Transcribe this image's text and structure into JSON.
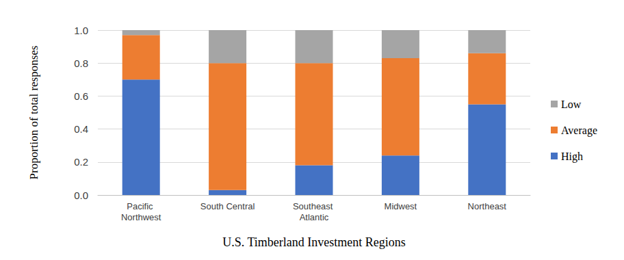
{
  "chart_data": {
    "type": "bar",
    "stacked": true,
    "orientation": "vertical",
    "x_label": "U.S. Timberland Investment Regions",
    "y_label": "Proportion of total responses",
    "categories": [
      "Pacific Northwest",
      "South Central",
      "Southeast Atlantic",
      "Midwest",
      "Northeast"
    ],
    "series": [
      {
        "name": "High",
        "color": "#4472c4",
        "values": [
          0.7,
          0.03,
          0.18,
          0.24,
          0.55
        ]
      },
      {
        "name": "Average",
        "color": "#ed7d31",
        "values": [
          0.27,
          0.77,
          0.62,
          0.59,
          0.31
        ]
      },
      {
        "name": "Low",
        "color": "#a5a5a5",
        "values": [
          0.03,
          0.2,
          0.2,
          0.17,
          0.14
        ]
      }
    ],
    "ylim": [
      0,
      1
    ],
    "yticks": [
      {
        "value": 0,
        "label": "0.0"
      },
      0.2,
      0.4,
      0.6,
      0.8,
      {
        "value": 1,
        "label": "1.0"
      }
    ],
    "grid": true,
    "legend": "right"
  }
}
